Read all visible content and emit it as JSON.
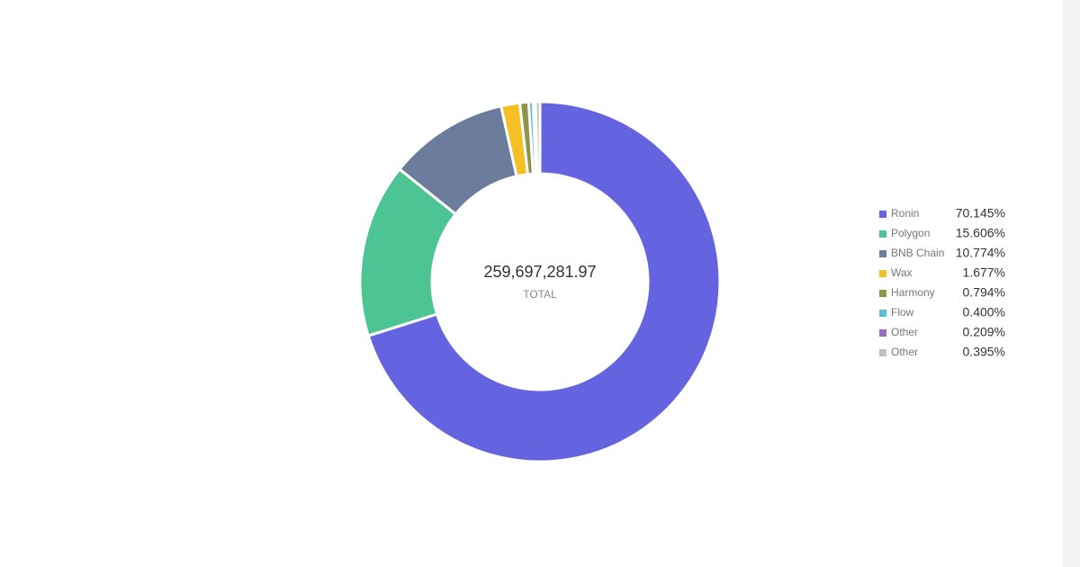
{
  "chart_data": {
    "type": "donut",
    "center_value": "259,697,281.97",
    "center_label": "TOTAL",
    "categories": [
      "Ronin",
      "Polygon",
      "BNB Chain",
      "Wax",
      "Harmony",
      "Flow",
      "Other",
      "Other"
    ],
    "values": [
      70.145,
      15.606,
      10.774,
      1.677,
      0.794,
      0.4,
      0.209,
      0.395
    ],
    "value_labels": [
      "70.145%",
      "15.606%",
      "10.774%",
      "1.677%",
      "0.794%",
      "0.400%",
      "0.209%",
      "0.395%"
    ],
    "colors": [
      "#6464e0",
      "#4cc494",
      "#6b7c9c",
      "#f5c023",
      "#8f9448",
      "#5bbcd6",
      "#9b6cc4",
      "#bdbdc4"
    ],
    "legend": "right"
  }
}
